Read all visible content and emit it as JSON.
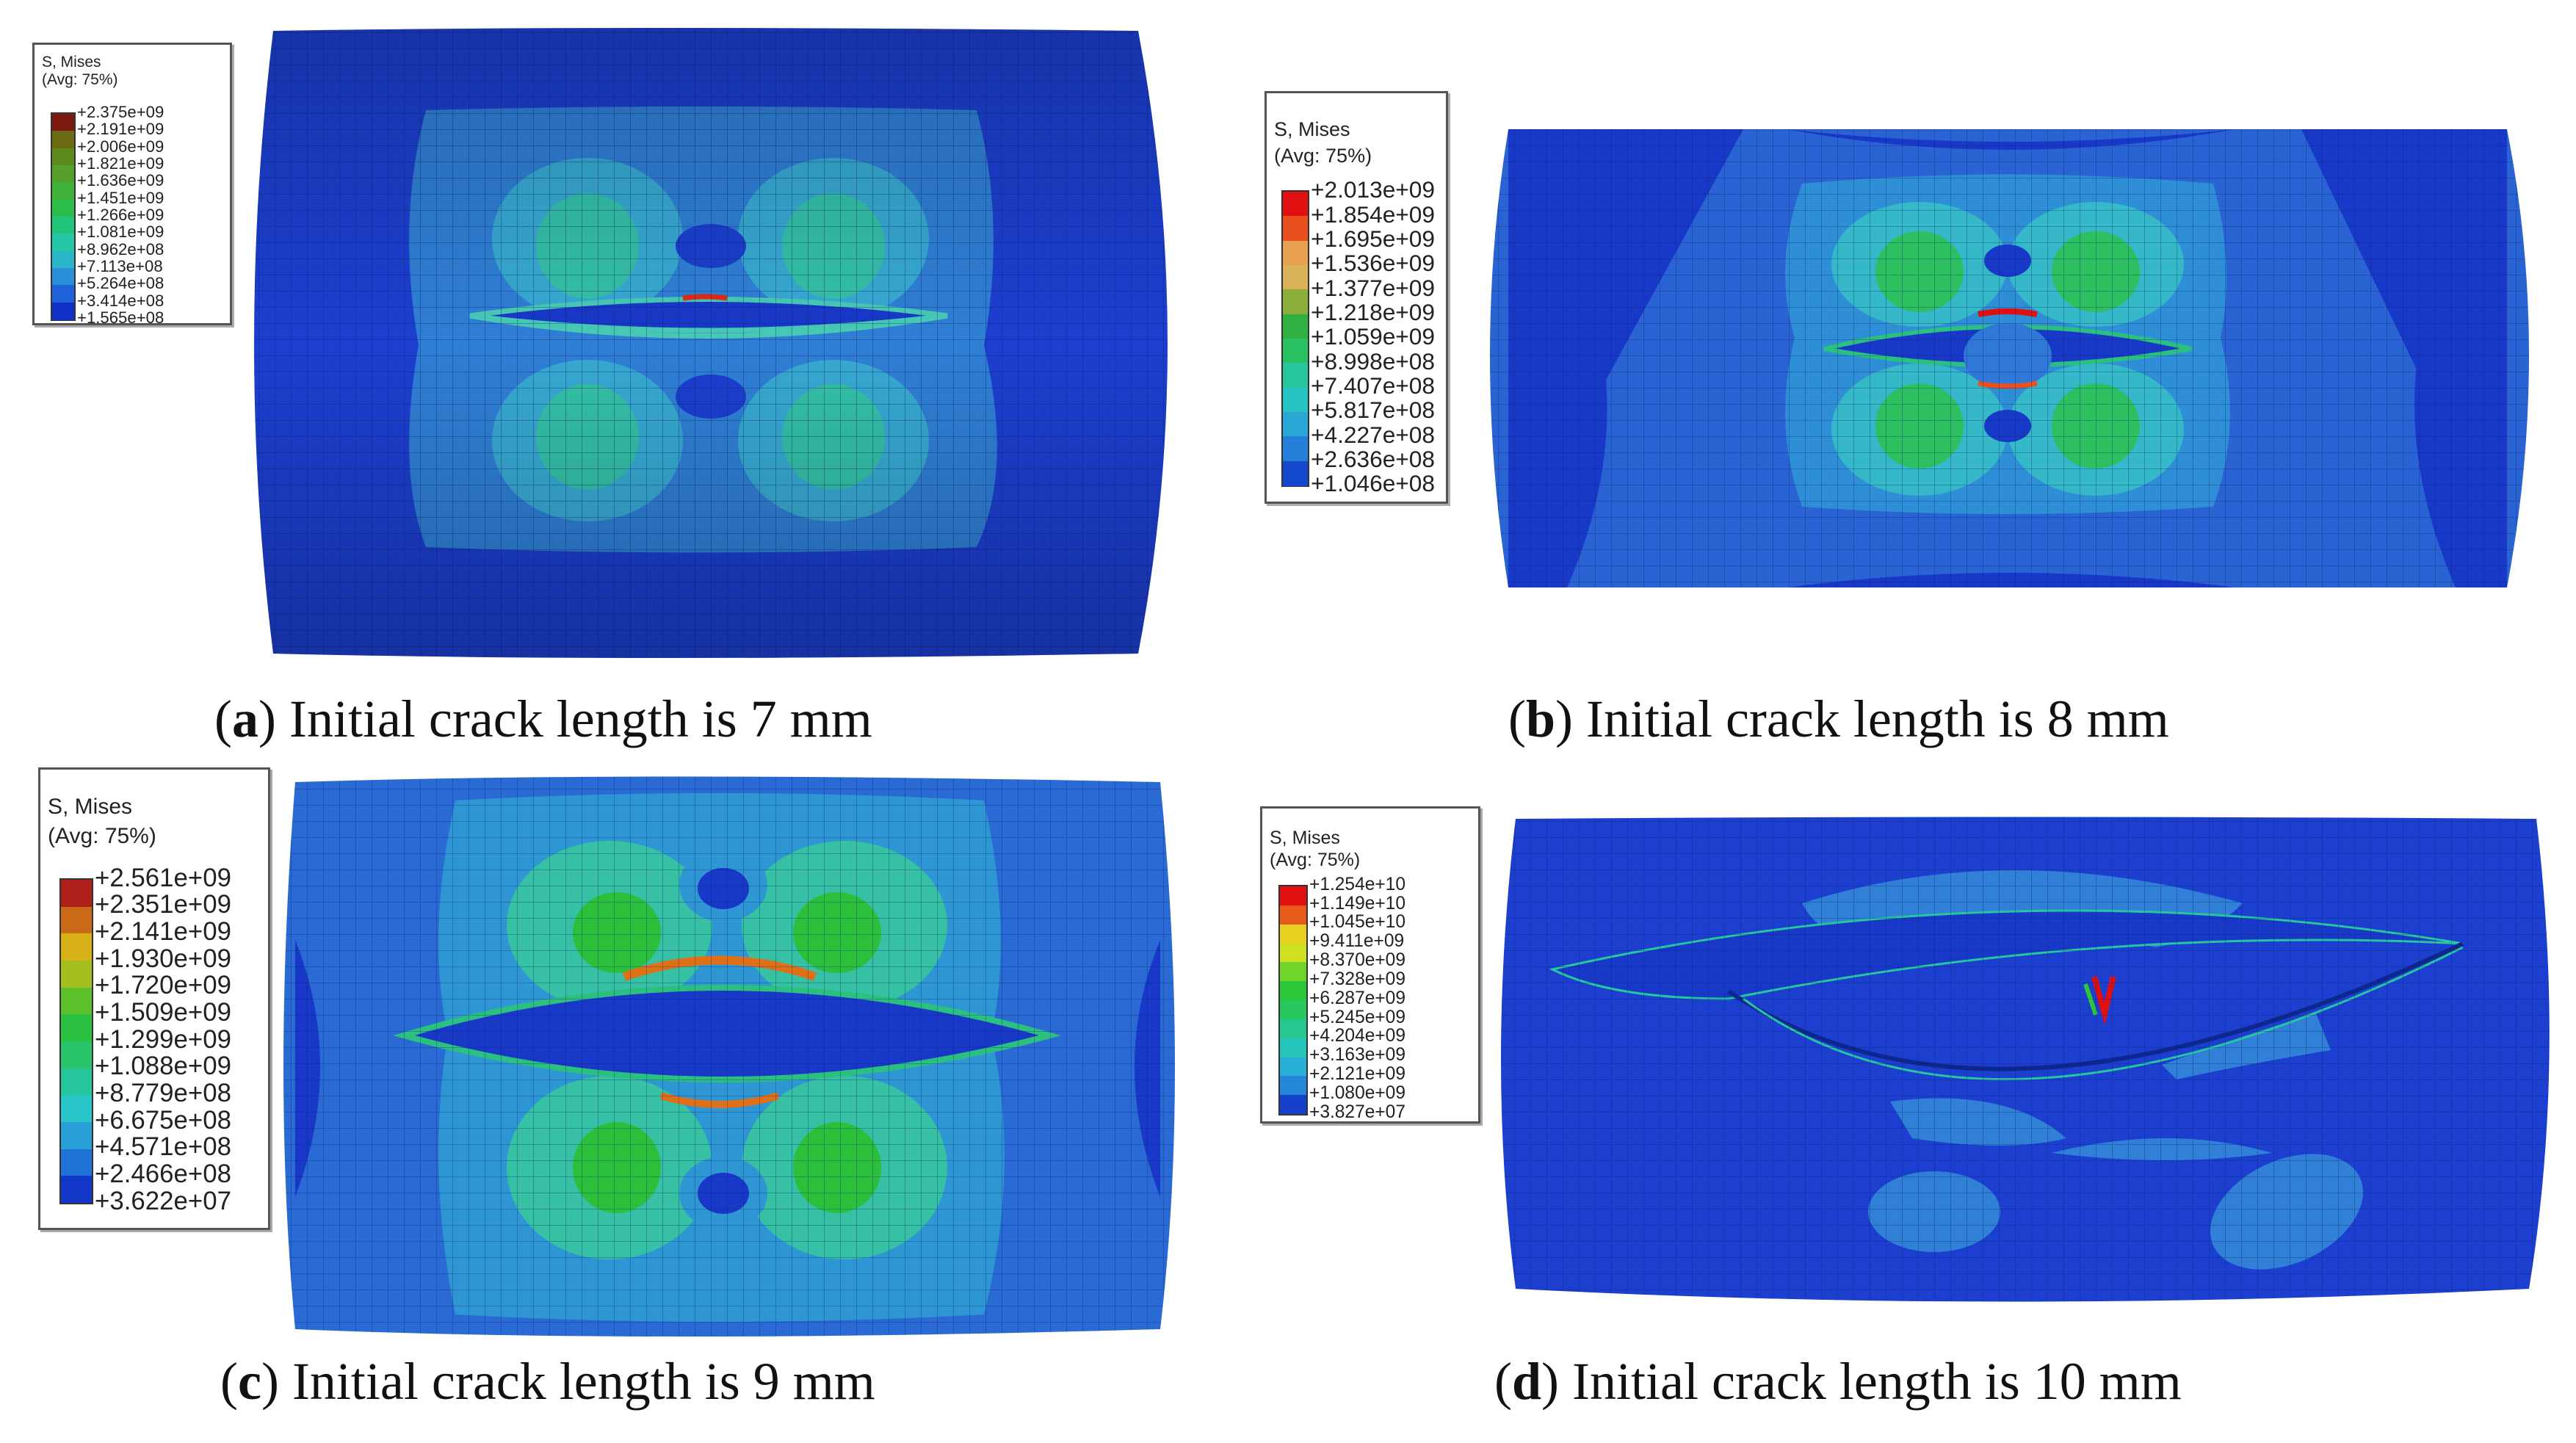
{
  "panels": [
    {
      "id": "a",
      "caption_letter": "a",
      "caption_text": "Initial crack length is 7 mm",
      "legend": {
        "title_line1": "S, Mises",
        "title_line2": "(Avg: 75%)",
        "values": [
          "+2.375e+09",
          "+2.191e+09",
          "+2.006e+09",
          "+1.821e+09",
          "+1.636e+09",
          "+1.451e+09",
          "+1.266e+09",
          "+1.081e+09",
          "+8.962e+08",
          "+7.113e+08",
          "+5.264e+08",
          "+3.414e+08",
          "+1.565e+08"
        ],
        "colors": [
          "#7a1a10",
          "#6b6a14",
          "#5d8a1c",
          "#55a02a",
          "#3fb23a",
          "#2bbd4a",
          "#22c47a",
          "#25c7a6",
          "#2ab6c9",
          "#2a8fd8",
          "#1f62d8",
          "#1030c8"
        ]
      }
    },
    {
      "id": "b",
      "caption_letter": "b",
      "caption_text": "Initial crack length is 8 mm",
      "legend": {
        "title_line1": "S, Mises",
        "title_line2": "(Avg: 75%)",
        "values": [
          "+2.013e+09",
          "+1.854e+09",
          "+1.695e+09",
          "+1.536e+09",
          "+1.377e+09",
          "+1.218e+09",
          "+1.059e+09",
          "+8.998e+08",
          "+7.407e+08",
          "+5.817e+08",
          "+4.227e+08",
          "+2.636e+08",
          "+1.046e+08"
        ],
        "colors": [
          "#e01010",
          "#e85020",
          "#e6a050",
          "#d9b25a",
          "#8cae3a",
          "#2fb040",
          "#28c060",
          "#26c59c",
          "#27c4c4",
          "#2aa6d6",
          "#2480d8",
          "#1448cc"
        ]
      }
    },
    {
      "id": "c",
      "caption_letter": "c",
      "caption_text": "Initial crack length is 9 mm",
      "legend": {
        "title_line1": "S, Mises",
        "title_line2": "(Avg: 75%)",
        "values": [
          "+2.561e+09",
          "+2.351e+09",
          "+2.141e+09",
          "+1.930e+09",
          "+1.720e+09",
          "+1.509e+09",
          "+1.299e+09",
          "+1.088e+09",
          "+8.779e+08",
          "+6.675e+08",
          "+4.571e+08",
          "+2.466e+08",
          "+3.622e+07"
        ],
        "colors": [
          "#b0201a",
          "#c86a18",
          "#d8b018",
          "#a6bd20",
          "#5cc02a",
          "#2cc040",
          "#28c46a",
          "#26c69c",
          "#27c4c8",
          "#29a0d8",
          "#1f72d6",
          "#1236c8"
        ]
      }
    },
    {
      "id": "d",
      "caption_letter": "d",
      "caption_text": "Initial crack length is 10 mm",
      "legend": {
        "title_line1": "S, Mises",
        "title_line2": "(Avg: 75%)",
        "values": [
          "+1.254e+10",
          "+1.149e+10",
          "+1.045e+10",
          "+9.411e+09",
          "+8.370e+09",
          "+7.328e+09",
          "+6.287e+09",
          "+5.245e+09",
          "+4.204e+09",
          "+3.163e+09",
          "+2.121e+09",
          "+1.080e+09",
          "+3.827e+07"
        ],
        "colors": [
          "#e01010",
          "#e85a1a",
          "#e8d020",
          "#cfe020",
          "#70d42a",
          "#2cc83a",
          "#28c860",
          "#26c890",
          "#27c6bc",
          "#28b0d6",
          "#2486d8",
          "#1440cc"
        ]
      }
    }
  ]
}
